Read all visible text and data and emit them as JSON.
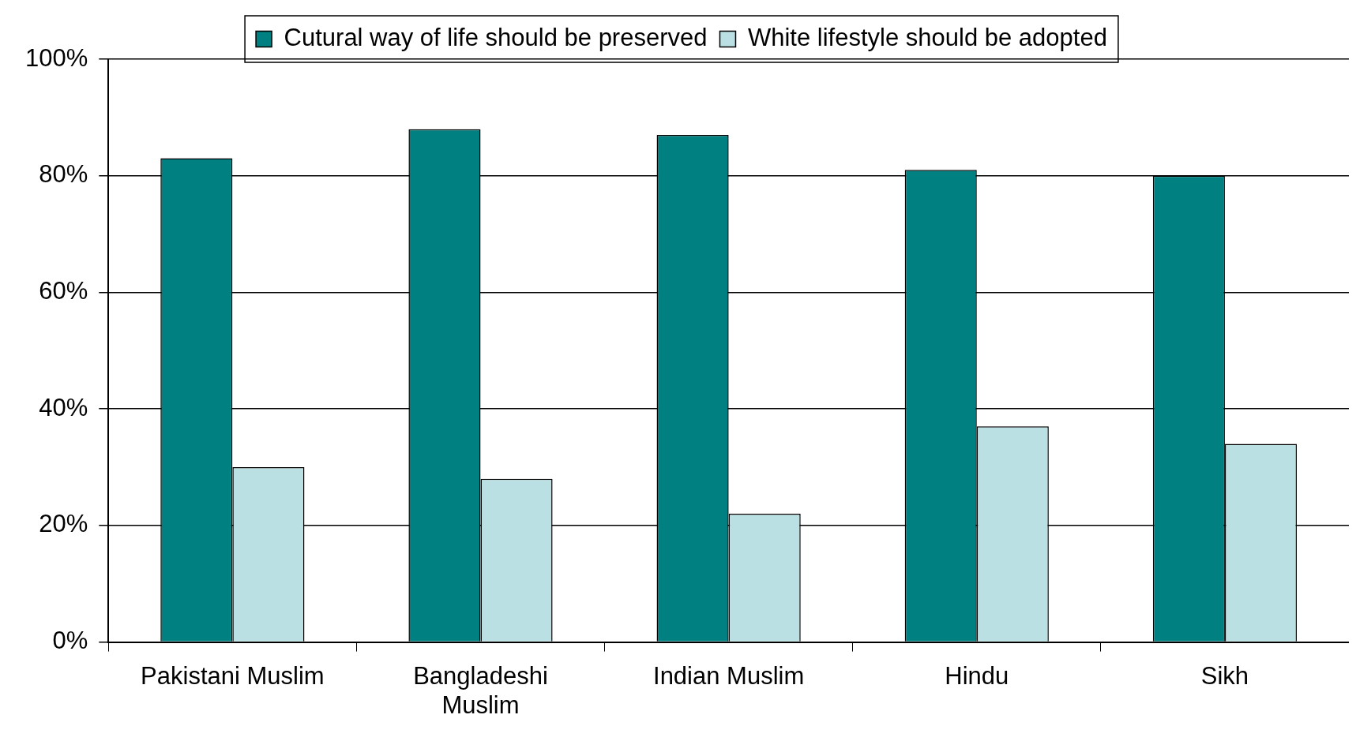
{
  "chart_data": {
    "type": "bar",
    "categories": [
      "Pakistani Muslim",
      "Bangladeshi Muslim",
      "Indian Muslim",
      "Hindu",
      "Sikh"
    ],
    "series": [
      {
        "name": "Cutural way of life should be preserved",
        "color": "#008080",
        "values": [
          83,
          88,
          87,
          81,
          80
        ]
      },
      {
        "name": "White lifestyle should be adopted",
        "color": "#bbe0e3",
        "values": [
          30,
          28,
          22,
          37,
          34
        ]
      }
    ],
    "ylim": [
      0,
      100
    ],
    "yticks": [
      {
        "value": 0,
        "label": "0%"
      },
      {
        "value": 20,
        "label": "20%"
      },
      {
        "value": 40,
        "label": "40%"
      },
      {
        "value": 60,
        "label": "60%"
      },
      {
        "value": 80,
        "label": "80%"
      },
      {
        "value": 100,
        "label": "100%"
      }
    ],
    "grid": "y",
    "legend": "top"
  }
}
